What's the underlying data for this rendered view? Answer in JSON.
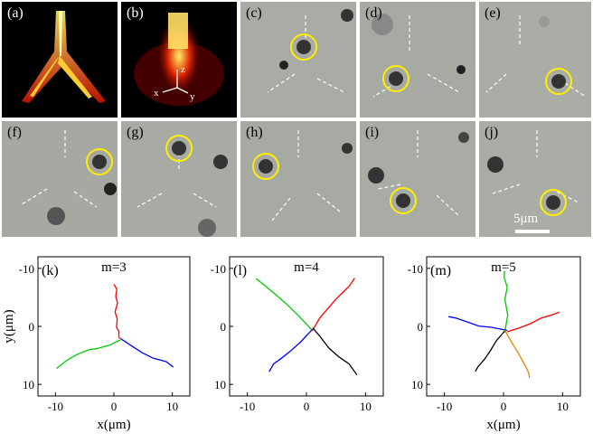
{
  "panels_top": [
    {
      "id": "a",
      "label": "(a)"
    },
    {
      "id": "b",
      "label": "(b)",
      "axes": {
        "x": "x",
        "y": "y",
        "z": "z"
      }
    },
    {
      "id": "c",
      "label": "(c)"
    },
    {
      "id": "d",
      "label": "(d)"
    },
    {
      "id": "e",
      "label": "(e)"
    }
  ],
  "panels_mid": [
    {
      "id": "f",
      "label": "(f)"
    },
    {
      "id": "g",
      "label": "(g)"
    },
    {
      "id": "h",
      "label": "(h)"
    },
    {
      "id": "i",
      "label": "(i)"
    },
    {
      "id": "j",
      "label": "(j)"
    }
  ],
  "scale_bar": "5μm",
  "chart_data": [
    {
      "type": "line",
      "panel_label": "(k)",
      "title": "m=3",
      "xlabel": "x(μm)",
      "ylabel": "y(μm)",
      "xticks": [
        "-10",
        "0",
        "10"
      ],
      "yticks": [
        "-10",
        "0",
        "10"
      ],
      "xlim": [
        -13,
        13
      ],
      "ylim": [
        -12,
        12
      ],
      "series": [
        {
          "color": "#ff0000",
          "x": [
            0,
            0.3,
            0.1,
            0.6,
            0.4,
            0.8,
            0.5,
            0.7,
            0.6,
            0.9
          ],
          "y": [
            -7.5,
            -6.5,
            -5,
            -3.8,
            -2.5,
            -1.5,
            0,
            1,
            1.8,
            2.2
          ]
        },
        {
          "color": "#00cc00",
          "x": [
            0.9,
            -1,
            -3,
            -4,
            -6,
            -8,
            -10
          ],
          "y": [
            2.2,
            3,
            3.8,
            4.2,
            5,
            5.8,
            7
          ]
        },
        {
          "color": "#0000ff",
          "x": [
            0.9,
            3,
            5,
            7,
            9,
            10
          ],
          "y": [
            2.2,
            3.2,
            4.3,
            5.5,
            6.3,
            7.2
          ]
        }
      ]
    },
    {
      "type": "line",
      "panel_label": "(l)",
      "title": "m=4",
      "xlabel": "",
      "ylabel": "",
      "xticks": [
        "-10",
        "0",
        "10"
      ],
      "yticks": [
        "-10",
        "0",
        "10"
      ],
      "xlim": [
        -13,
        13
      ],
      "ylim": [
        -12,
        12
      ],
      "series": [
        {
          "color": "#ff0000",
          "x": [
            1,
            2,
            3.5,
            5,
            6.5,
            7.5,
            8.2
          ],
          "y": [
            0.5,
            -1.5,
            -3,
            -4.5,
            -6,
            -7.2,
            -8.5
          ]
        },
        {
          "color": "#00cc00",
          "x": [
            0.8,
            -1.5,
            -3.5,
            -5.5,
            -7,
            -8.5
          ],
          "y": [
            0.6,
            -2,
            -4,
            -5.7,
            -7,
            -8.3
          ]
        },
        {
          "color": "#0000ff",
          "x": [
            0.8,
            -1,
            -2.5,
            -4,
            -5.5,
            -6.5
          ],
          "y": [
            0.6,
            2.5,
            4,
            5.5,
            6.7,
            8
          ]
        },
        {
          "color": "#000000",
          "x": [
            1,
            2.5,
            4,
            5.5,
            7,
            8.3
          ],
          "y": [
            0.5,
            1.8,
            3.5,
            5,
            6.5,
            8.6
          ]
        }
      ]
    },
    {
      "type": "line",
      "panel_label": "(m)",
      "title": "m=5",
      "xlabel": "x(μm)",
      "ylabel": "",
      "xticks": [
        "-10",
        "0",
        "10"
      ],
      "yticks": [
        "-10",
        "0",
        "10"
      ],
      "xlim": [
        -13,
        13
      ],
      "ylim": [
        -12,
        12
      ],
      "series": [
        {
          "color": "#00cc00",
          "x": [
            0.2,
            0.5,
            0,
            0.6,
            0.3,
            0.4
          ],
          "y": [
            0.8,
            -2,
            -4.5,
            -6.5,
            -8.5,
            -9.8
          ]
        },
        {
          "color": "#ff0000",
          "x": [
            0.4,
            2.5,
            4.5,
            6.5,
            8.5,
            9.5
          ],
          "y": [
            0.8,
            0,
            -0.5,
            -1.2,
            -1.8,
            -2.5
          ]
        },
        {
          "color": "#0000ff",
          "x": [
            0.4,
            -2,
            -4,
            -6,
            -8,
            -9.5
          ],
          "y": [
            0.8,
            0,
            -0.3,
            -0.8,
            -1.2,
            -1.5
          ]
        },
        {
          "color": "#000000",
          "x": [
            0.4,
            -1,
            -2,
            -3.2,
            -4.5,
            -5
          ],
          "y": [
            0.8,
            2.5,
            4,
            5.5,
            7,
            8
          ]
        },
        {
          "color": "#dd8800",
          "x": [
            0.4,
            1.5,
            2.5,
            3.2,
            4,
            4.3
          ],
          "y": [
            0.8,
            2.8,
            4.5,
            6,
            7.8,
            9
          ]
        }
      ]
    }
  ]
}
